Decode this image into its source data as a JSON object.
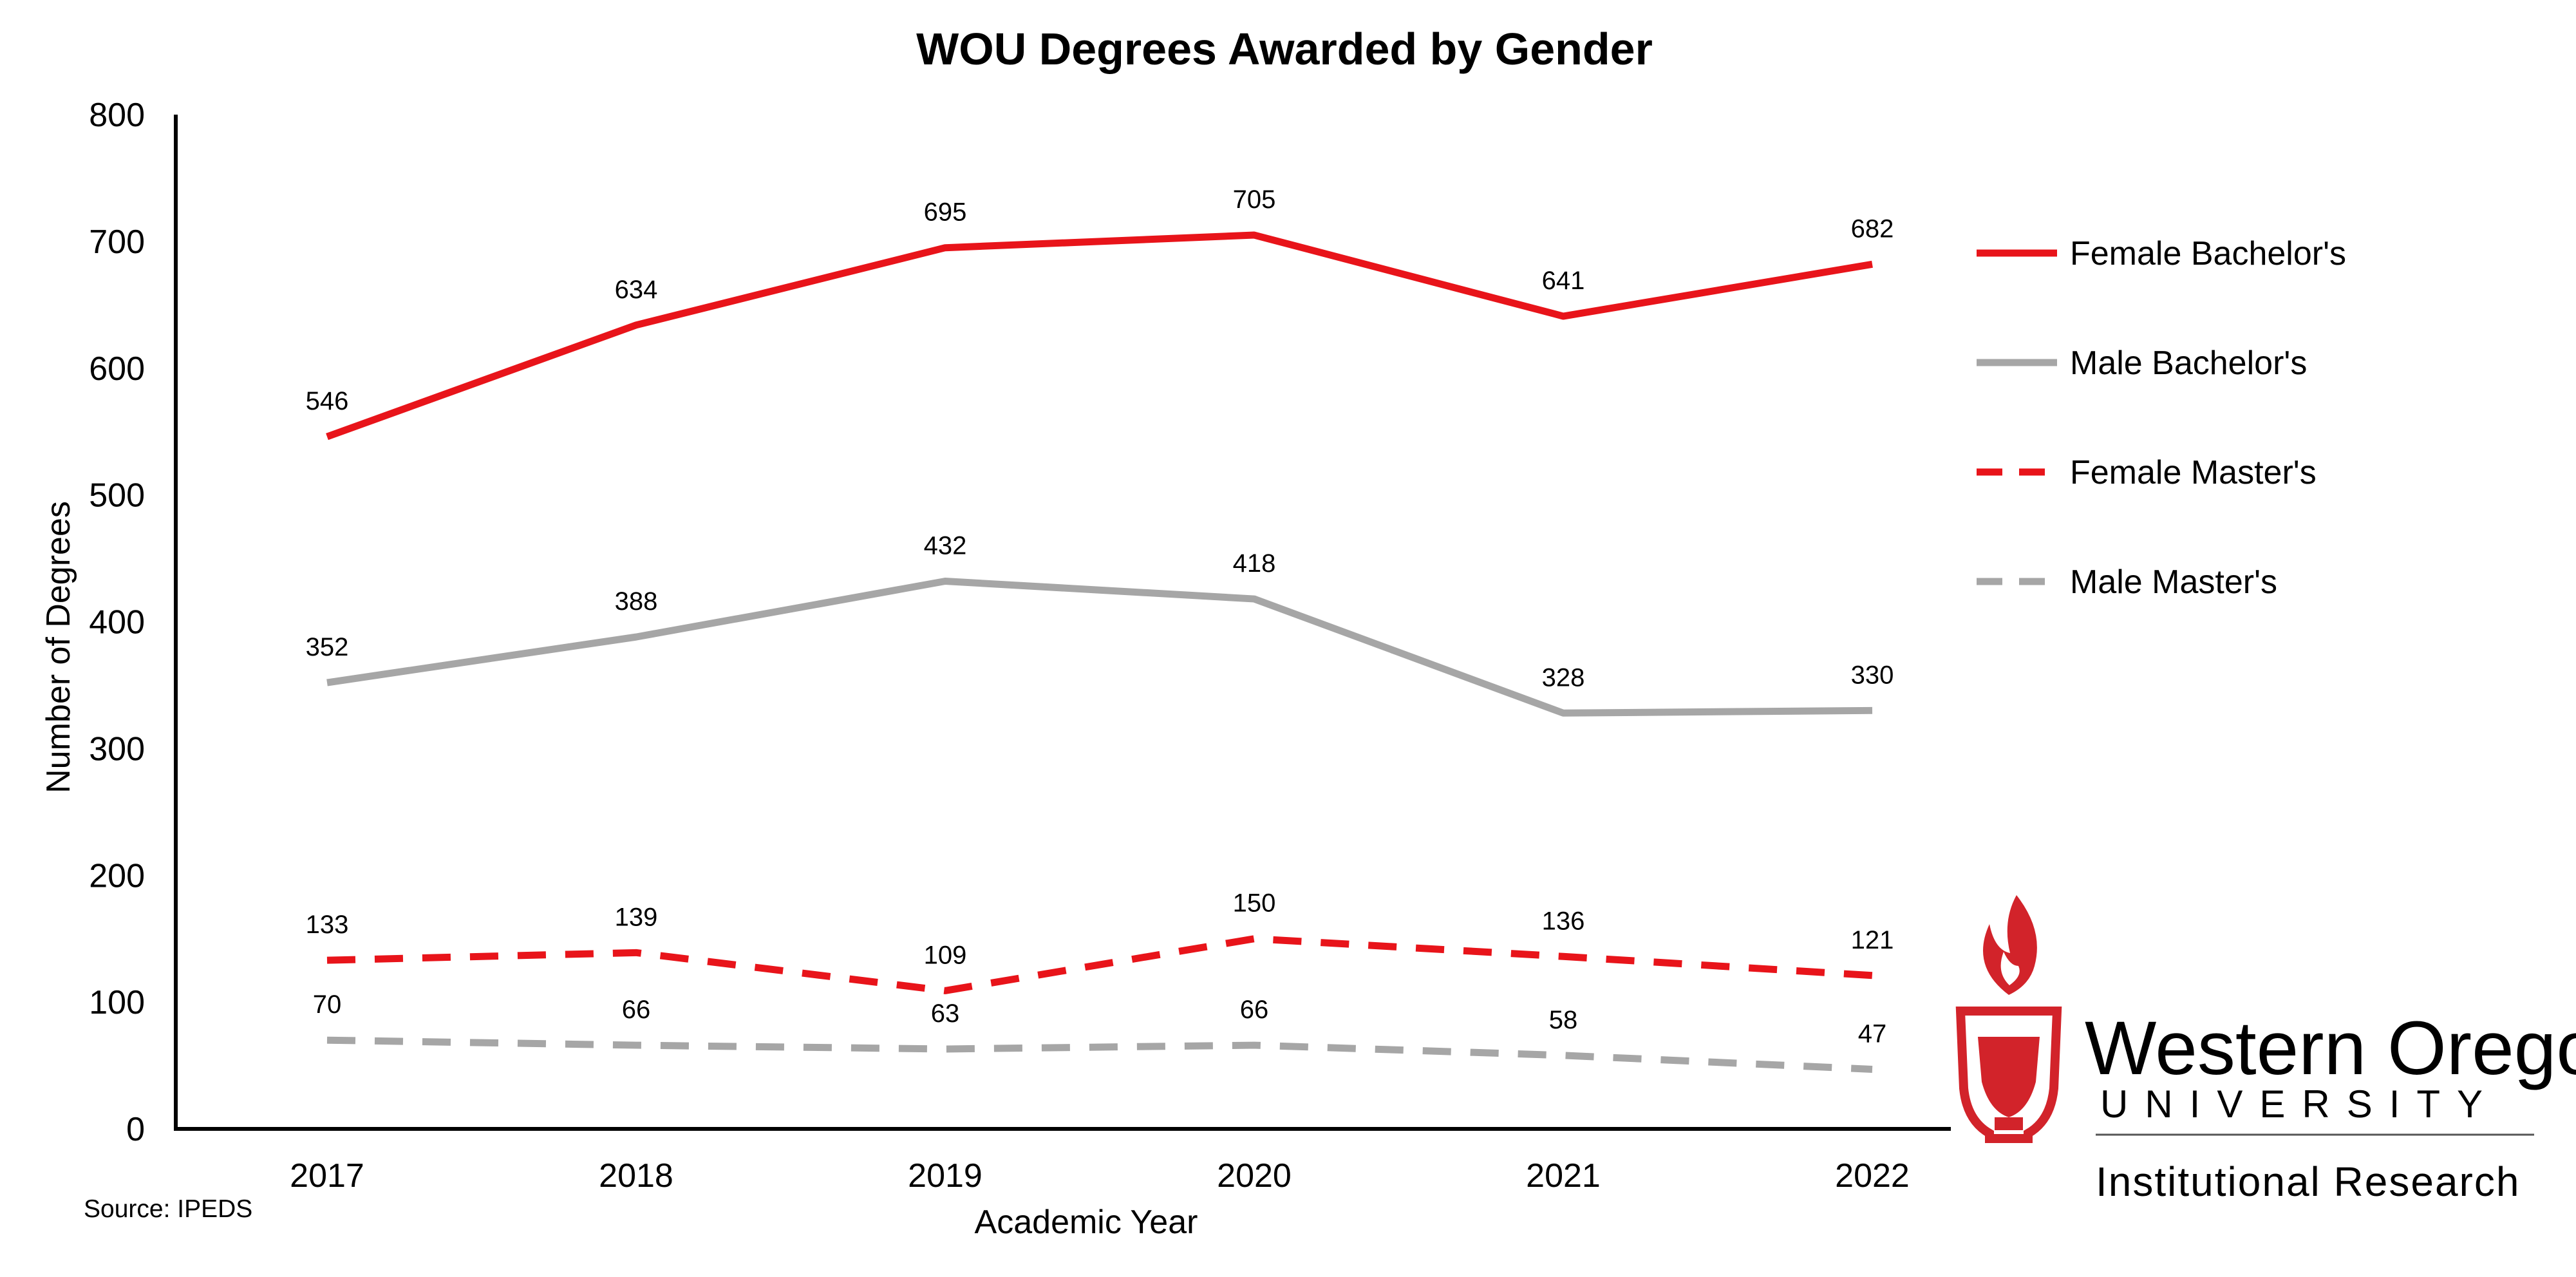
{
  "chart_data": {
    "type": "line",
    "title": "WOU Degrees Awarded by Gender",
    "xlabel": "Academic Year",
    "ylabel": "Number of Degrees",
    "ylim": [
      0,
      800
    ],
    "yticks": [
      0,
      100,
      200,
      300,
      400,
      500,
      600,
      700,
      800
    ],
    "categories": [
      "2017",
      "2018",
      "2019",
      "2020",
      "2021",
      "2022"
    ],
    "grid": false,
    "legend_position": "right",
    "series": [
      {
        "name": "Female Bachelor's",
        "values": [
          546,
          634,
          695,
          705,
          641,
          682
        ],
        "color": "#e8141a",
        "dash": "solid"
      },
      {
        "name": "Male Bachelor's",
        "values": [
          352,
          388,
          432,
          418,
          328,
          330
        ],
        "color": "#a6a6a6",
        "dash": "solid"
      },
      {
        "name": "Female Master's",
        "values": [
          133,
          139,
          109,
          150,
          136,
          121
        ],
        "color": "#e8141a",
        "dash": "dashed"
      },
      {
        "name": "Male Master's",
        "values": [
          70,
          66,
          63,
          66,
          58,
          47
        ],
        "color": "#a6a6a6",
        "dash": "dashed"
      }
    ],
    "source": "Source: IPEDS"
  },
  "logo": {
    "name": "Western Oregon",
    "subtitle": "UNIVERSITY",
    "department": "Institutional Research",
    "color": "#d2232a"
  }
}
